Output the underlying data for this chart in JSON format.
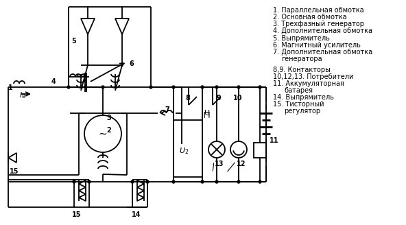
{
  "background_color": "#ffffff",
  "line_color": "#000000",
  "font_size": 7.0,
  "legend": [
    [
      398,
      10,
      "1. Параллельная обмотка"
    ],
    [
      398,
      20,
      "2. Основная обмотка"
    ],
    [
      398,
      30,
      "3. Трехфазный генератор"
    ],
    [
      398,
      40,
      "4. Дополнительная обмотка"
    ],
    [
      398,
      51,
      "5. Выпрямитель"
    ],
    [
      398,
      61,
      "6. Магнитный усилитель"
    ],
    [
      398,
      71,
      "7. Дополнительная обмотка"
    ],
    [
      410,
      81,
      "генератора"
    ],
    [
      398,
      97,
      "8,9. Контакторы"
    ],
    [
      398,
      107,
      "10,12,13. Потребители"
    ],
    [
      398,
      117,
      "11. Аккумуляторная"
    ],
    [
      414,
      127,
      "батарея"
    ],
    [
      398,
      137,
      "14. Выпрямитель"
    ],
    [
      398,
      147,
      "15. Тисторный"
    ],
    [
      414,
      157,
      "регулятор"
    ]
  ]
}
